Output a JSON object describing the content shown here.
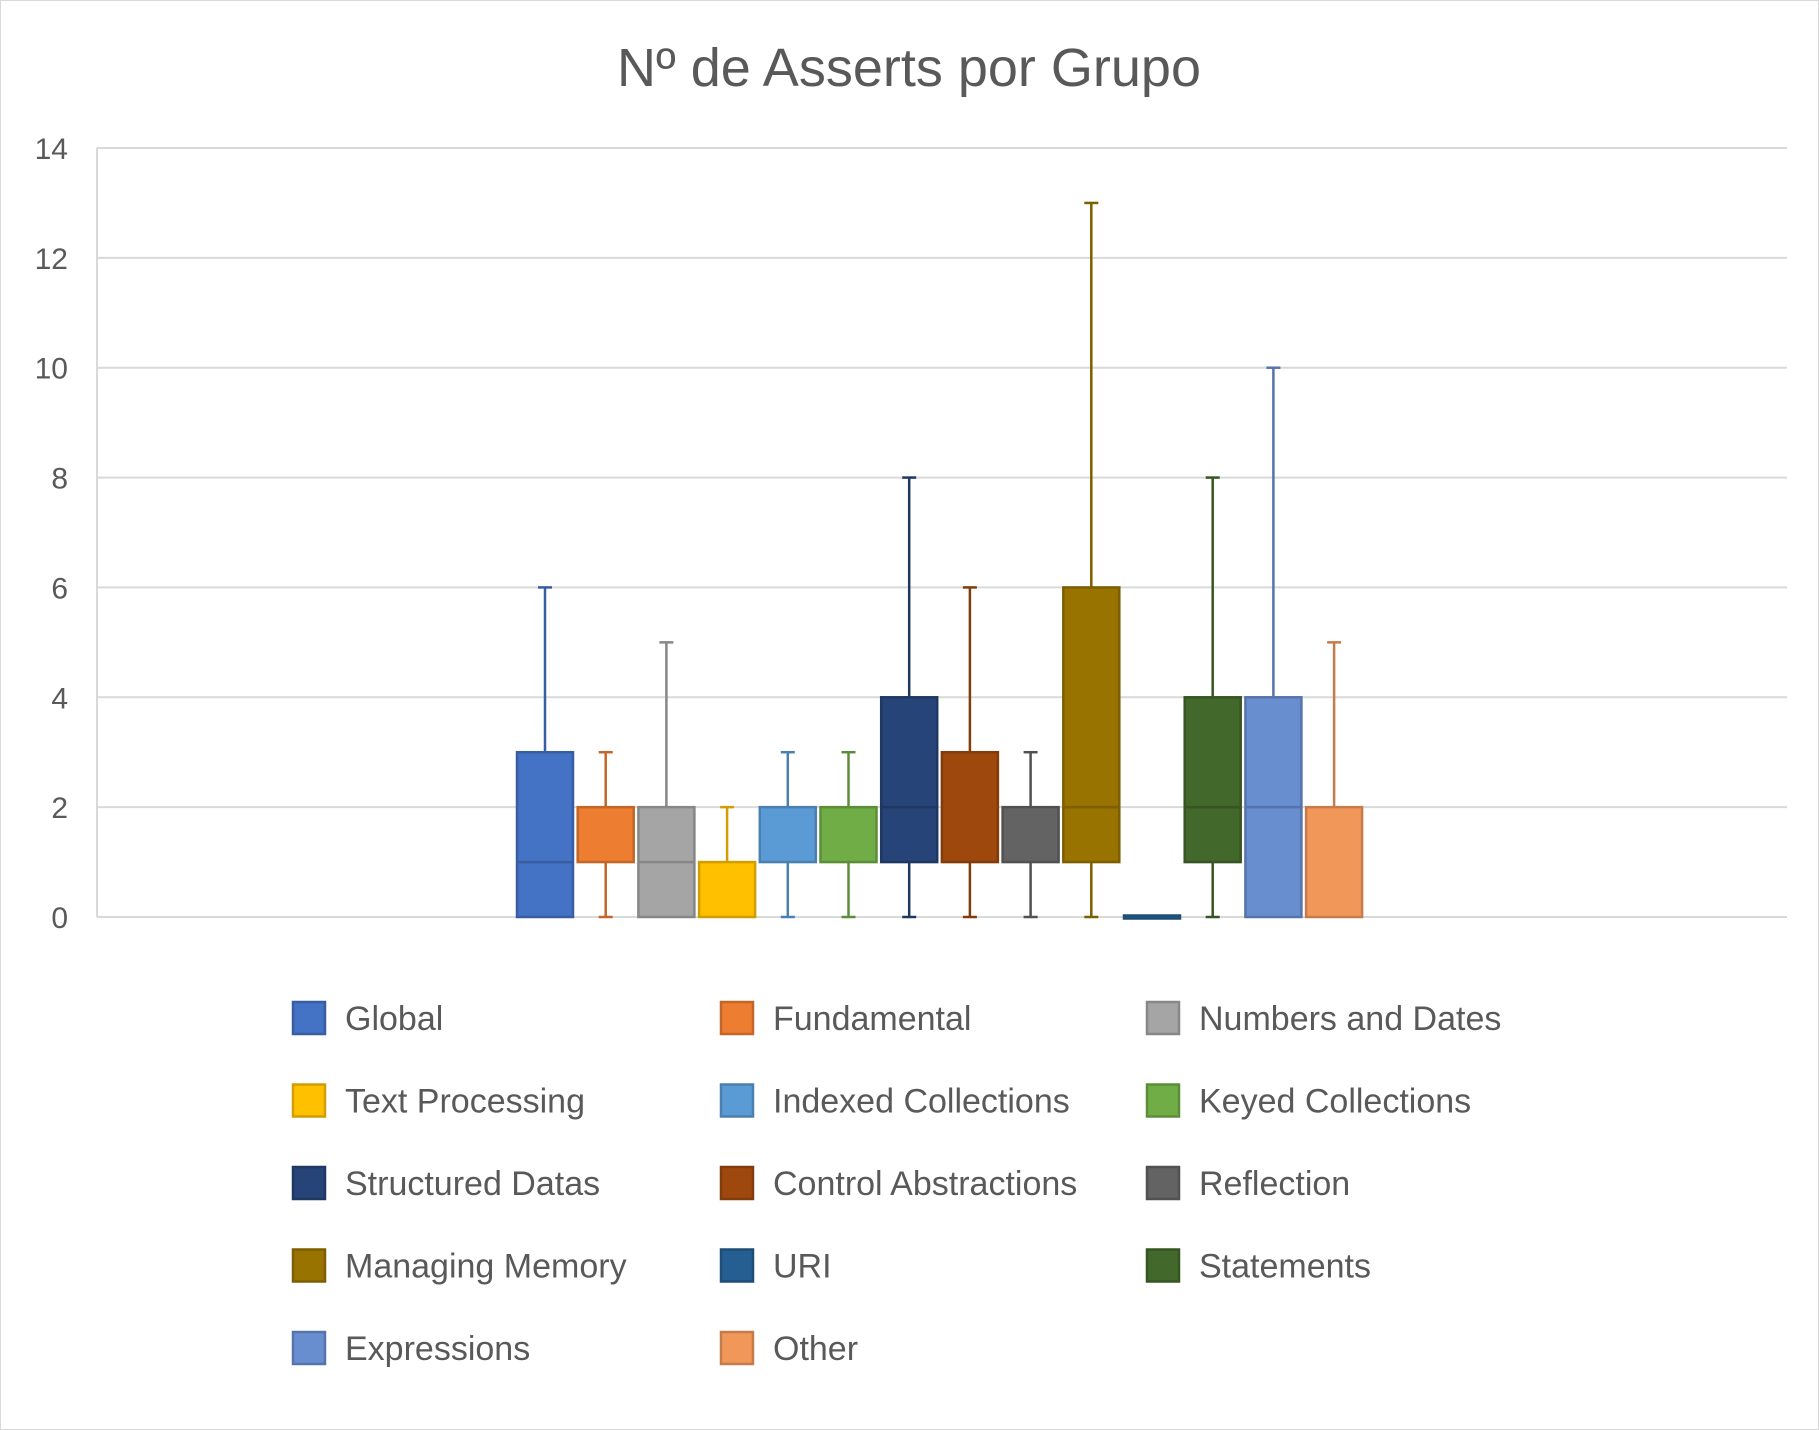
{
  "chart_data": {
    "type": "boxplot",
    "title": "Nº de Asserts por Grupo",
    "xlabel": "",
    "ylabel": "",
    "ylim": [
      0,
      14
    ],
    "yticks": [
      0,
      2,
      4,
      6,
      8,
      10,
      12,
      14
    ],
    "grid": true,
    "legend_position": "bottom",
    "series": [
      {
        "name": "Global",
        "color": "#4472C4",
        "min": 0,
        "q1": 0,
        "median": 1,
        "q3": 3,
        "max": 6
      },
      {
        "name": "Fundamental",
        "color": "#ED7D31",
        "min": 0,
        "q1": 1,
        "median": 1,
        "q3": 2,
        "max": 3
      },
      {
        "name": "Numbers and Dates",
        "color": "#A5A5A5",
        "min": 0,
        "q1": 0,
        "median": 1,
        "q3": 2,
        "max": 5
      },
      {
        "name": "Text Processing",
        "color": "#FFC000",
        "min": 0,
        "q1": 0,
        "median": 0,
        "q3": 1,
        "max": 2
      },
      {
        "name": "Indexed Collections",
        "color": "#5B9BD5",
        "min": 0,
        "q1": 1,
        "median": 1,
        "q3": 2,
        "max": 3
      },
      {
        "name": "Keyed Collections",
        "color": "#70AD47",
        "min": 0,
        "q1": 1,
        "median": 1,
        "q3": 2,
        "max": 3
      },
      {
        "name": "Structured Datas",
        "color": "#264478",
        "min": 0,
        "q1": 1,
        "median": 2,
        "q3": 4,
        "max": 8
      },
      {
        "name": "Control Abstractions",
        "color": "#9E480E",
        "min": 0,
        "q1": 1,
        "median": 1,
        "q3": 3,
        "max": 6
      },
      {
        "name": "Reflection",
        "color": "#636363",
        "min": 0,
        "q1": 1,
        "median": 1,
        "q3": 2,
        "max": 3
      },
      {
        "name": "Managing Memory",
        "color": "#997300",
        "min": 0,
        "q1": 1,
        "median": 2,
        "q3": 6,
        "max": 13
      },
      {
        "name": "URI",
        "color": "#255E91",
        "min": 0,
        "q1": 0,
        "median": 0,
        "q3": 0,
        "max": 0
      },
      {
        "name": "Statements",
        "color": "#43682B",
        "min": 0,
        "q1": 1,
        "median": 2,
        "q3": 4,
        "max": 8
      },
      {
        "name": "Expressions",
        "color": "#698ED0",
        "min": 0,
        "q1": 0,
        "median": 2,
        "q3": 4,
        "max": 10
      },
      {
        "name": "Other",
        "color": "#F1975A",
        "min": 0,
        "q1": 0,
        "median": 0,
        "q3": 2,
        "max": 5
      }
    ]
  }
}
